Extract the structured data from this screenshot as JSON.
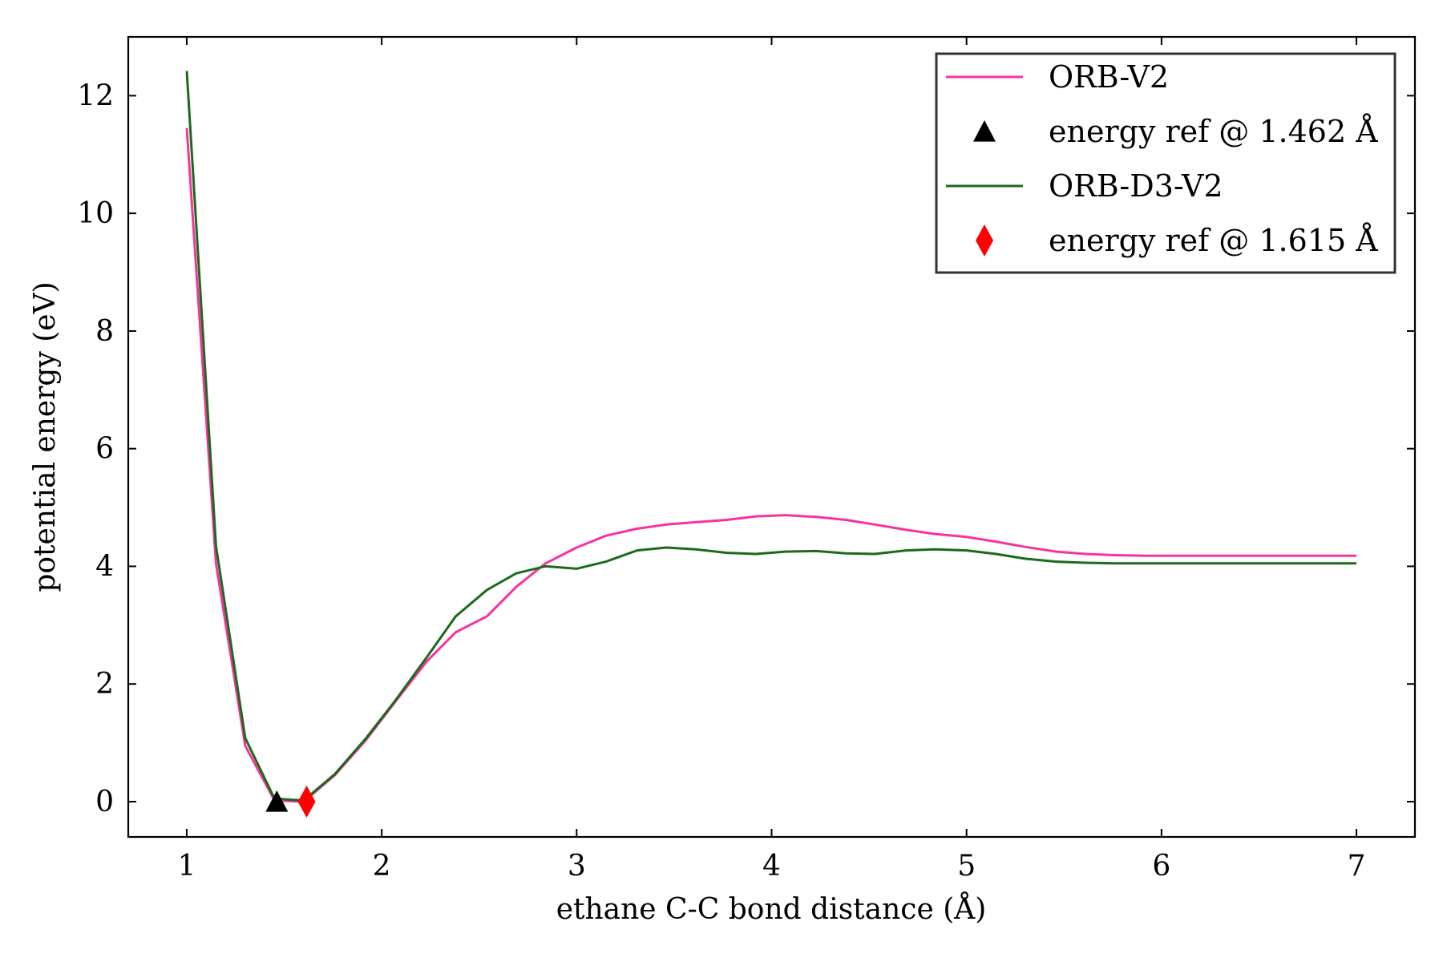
{
  "chart_data": {
    "type": "line",
    "title": "",
    "xlabel": "ethane C-C bond distance (Å)",
    "ylabel": "potential energy (eV)",
    "xlim": [
      0.7,
      7.3
    ],
    "ylim": [
      -0.6,
      13.0
    ],
    "xticks": [
      1,
      2,
      3,
      4,
      5,
      6,
      7
    ],
    "yticks": [
      0,
      2,
      4,
      6,
      8,
      10,
      12
    ],
    "grid": false,
    "legend_position": "top-right",
    "series": [
      {
        "name": "ORB-V2",
        "kind": "line",
        "color": "#f7339f",
        "x": [
          1.0,
          1.15,
          1.3,
          1.45,
          1.6,
          1.76,
          1.92,
          2.07,
          2.23,
          2.38,
          2.54,
          2.69,
          2.84,
          3.0,
          3.15,
          3.31,
          3.46,
          3.61,
          3.77,
          3.92,
          4.07,
          4.23,
          4.38,
          4.53,
          4.69,
          4.84,
          5.0,
          5.15,
          5.3,
          5.46,
          5.61,
          5.76,
          5.92,
          6.07,
          6.23,
          6.38,
          6.53,
          6.69,
          6.84,
          7.0
        ],
        "y": [
          11.45,
          4.05,
          0.95,
          0.02,
          0.0,
          0.45,
          1.05,
          1.7,
          2.38,
          2.88,
          3.15,
          3.65,
          4.05,
          4.32,
          4.52,
          4.64,
          4.71,
          4.75,
          4.79,
          4.85,
          4.87,
          4.84,
          4.79,
          4.71,
          4.62,
          4.55,
          4.5,
          4.42,
          4.33,
          4.25,
          4.21,
          4.19,
          4.18,
          4.18,
          4.18,
          4.18,
          4.18,
          4.18,
          4.18,
          4.18
        ]
      },
      {
        "name": "energy ref @ 1.462 Å",
        "kind": "marker",
        "marker": "triangle",
        "color": "#000000",
        "x": [
          1.462
        ],
        "y": [
          0.0
        ]
      },
      {
        "name": "ORB-D3-V2",
        "kind": "line",
        "color": "#1a6b1a",
        "x": [
          1.0,
          1.15,
          1.3,
          1.45,
          1.6,
          1.76,
          1.92,
          2.07,
          2.23,
          2.38,
          2.54,
          2.69,
          2.84,
          3.0,
          3.15,
          3.31,
          3.46,
          3.61,
          3.77,
          3.92,
          4.07,
          4.23,
          4.38,
          4.53,
          4.69,
          4.84,
          5.0,
          5.15,
          5.3,
          5.46,
          5.61,
          5.76,
          5.92,
          6.07,
          6.23,
          6.38,
          6.53,
          6.69,
          6.84,
          7.0
        ],
        "y": [
          12.42,
          4.35,
          1.08,
          0.05,
          0.02,
          0.47,
          1.08,
          1.72,
          2.45,
          3.15,
          3.6,
          3.88,
          4.0,
          3.96,
          4.08,
          4.27,
          4.32,
          4.29,
          4.23,
          4.21,
          4.25,
          4.26,
          4.22,
          4.21,
          4.27,
          4.29,
          4.27,
          4.21,
          4.13,
          4.08,
          4.06,
          4.05,
          4.05,
          4.05,
          4.05,
          4.05,
          4.05,
          4.05,
          4.05,
          4.05
        ]
      },
      {
        "name": "energy ref @ 1.615 Å",
        "kind": "marker",
        "marker": "diamond",
        "color": "#ff0000",
        "x": [
          1.615
        ],
        "y": [
          0.0
        ]
      }
    ]
  }
}
